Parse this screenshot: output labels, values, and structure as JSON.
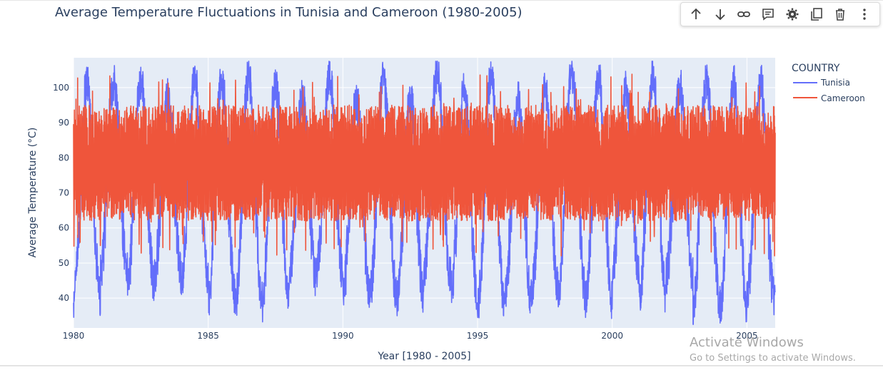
{
  "title": "Average Temperature Fluctuations in Tunisia and Cameroon (1980-2005)",
  "toolbar": {
    "icons": [
      "arrow-up-icon",
      "arrow-down-icon",
      "link-icon",
      "comment-icon",
      "gear-icon",
      "copy-icon",
      "trash-icon",
      "more-vertical-icon"
    ]
  },
  "watermark": {
    "line1": "Activate Windows",
    "line2": "Go to Settings to activate Windows."
  },
  "colors": {
    "plot_bg": "#e5ecf6",
    "grid": "#ffffff",
    "text": "#2a3f5f",
    "tunisia": "#636efa",
    "cameroon": "#ef553b"
  },
  "chart_data": {
    "type": "line",
    "xlabel": "Year [1980 - 2005]",
    "ylabel": "Average Temperature (°C)",
    "xlim": [
      1980,
      2006.05
    ],
    "ylim": [
      31.5,
      108.5
    ],
    "xticks": [
      1980,
      1985,
      1990,
      1995,
      2000,
      2005
    ],
    "yticks": [
      40,
      50,
      60,
      70,
      80,
      90,
      100
    ],
    "grid": true,
    "legend": {
      "title": "COUNTRY",
      "position": "top-right"
    },
    "series": [
      {
        "name": "Tunisia",
        "color": "#636efa",
        "description": "Daily average temperatures with strong annual cycle: summer highs ~95-105, winter lows ~38-48",
        "annual_peak_range": [
          95,
          105
        ],
        "annual_trough_range": [
          36,
          48
        ],
        "mean": 68
      },
      {
        "name": "Cameroon",
        "color": "#ef553b",
        "description": "Daily average temperatures with dense fluctuation between ~62 and ~95, occasional spikes to ~104",
        "band_range": [
          62,
          95
        ],
        "spike_max": 104,
        "spike_min": 52,
        "mean": 78
      }
    ]
  }
}
